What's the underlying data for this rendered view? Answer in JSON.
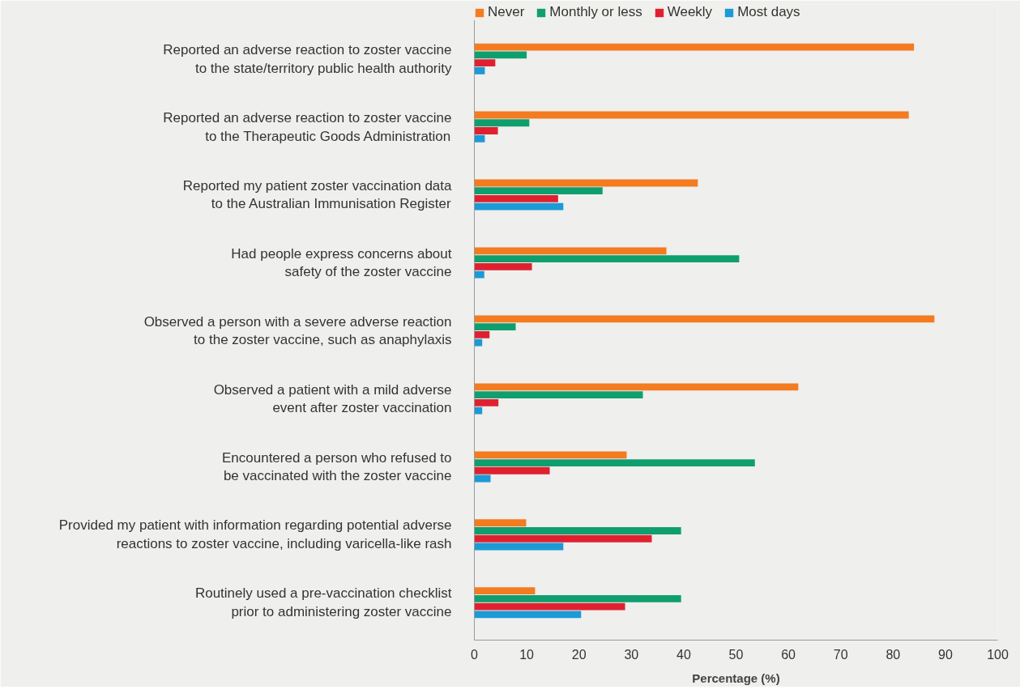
{
  "chart_data": {
    "type": "bar",
    "orientation": "horizontal",
    "xlabel": "Percentage (%)",
    "categories": [
      "Reported an adverse reaction to zoster vaccine to the state/territory public health authority",
      "Reported an adverse reaction to zoster vaccine to the Therapeutic Goods Administration",
      "Reported my patient zoster vaccination data to the Australian Immunisation Register",
      "Had people express concerns about safety of the zoster vaccine",
      "Observed a person with a severe adverse reaction to the zoster vaccine, such as anaphylaxis",
      "Observed a patient with a mild adverse event after zoster vaccination",
      "Encountered a person who refused to be vaccinated with the zoster vaccine",
      "Provided my patient with information regarding potential adverse reactions to zoster vaccine, including varicella-like rash",
      "Routinely used a pre-vaccination checklist prior to administering zoster vaccine"
    ],
    "series": [
      {
        "name": "Never",
        "color": "#f47b20",
        "values": [
          84,
          83,
          42.7,
          36.7,
          87.9,
          61.9,
          29.1,
          9.9,
          11.6
        ]
      },
      {
        "name": "Monthly or less",
        "color": "#0f9f6e",
        "values": [
          10,
          10.5,
          24.5,
          50.6,
          7.9,
          32.2,
          53.6,
          39.5,
          39.5
        ]
      },
      {
        "name": "Weekly",
        "color": "#e0202f",
        "values": [
          4,
          4.5,
          16,
          11,
          2.9,
          4.6,
          14.4,
          33.9,
          28.8
        ]
      },
      {
        "name": "Most days",
        "color": "#1b9ad6",
        "values": [
          2,
          2,
          17,
          1.9,
          1.5,
          1.5,
          3.1,
          17,
          20.4
        ]
      }
    ],
    "xlim": [
      0,
      100
    ],
    "xticks": [
      0,
      10,
      20,
      30,
      40,
      50,
      60,
      70,
      80,
      90,
      100
    ],
    "grid": false,
    "legend": "top"
  }
}
